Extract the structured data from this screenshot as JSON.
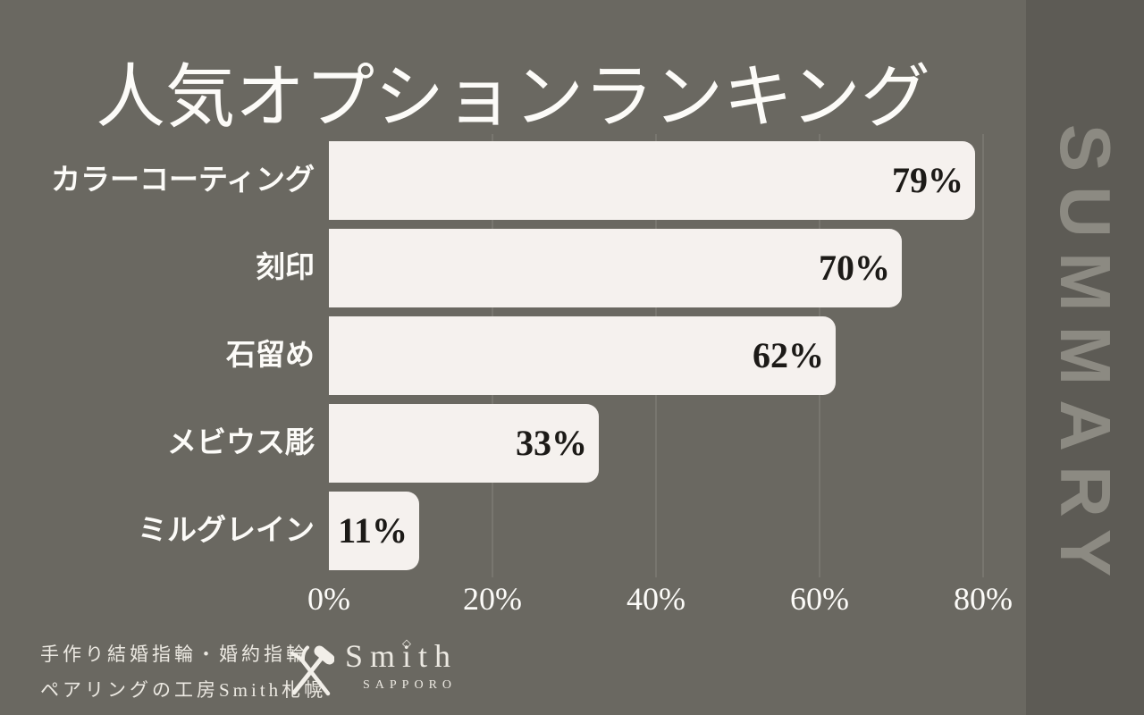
{
  "title": "人気オプションランキング",
  "summary_label": "SUMMARY",
  "chart_data": {
    "type": "bar",
    "orientation": "horizontal",
    "title": "人気オプションランキング",
    "categories": [
      "カラーコーティング",
      "刻印",
      "石留め",
      "メビウス彫",
      "ミルグレイン"
    ],
    "values": [
      79,
      70,
      62,
      33,
      11
    ],
    "value_labels": [
      "79%",
      "70%",
      "62%",
      "33%",
      "11%"
    ],
    "x_tick_labels": [
      "0%",
      "20%",
      "40%",
      "60%",
      "80%"
    ],
    "x_tick_values": [
      0,
      20,
      40,
      60,
      80
    ],
    "xlim": [
      0,
      84
    ],
    "grid": "vertical-gridlines",
    "legend": "none"
  },
  "footer": {
    "tagline_line1": "手作り結婚指輪・婚約指輪",
    "tagline_line2": "ペアリングの工房Smith札幌",
    "brand": "Smith",
    "brand_sub": "SAPPORO",
    "diamond": "◇"
  },
  "colors": {
    "background": "#6a6861",
    "panel": "#5d5b55",
    "summary_text": "#8c8a82",
    "bar": "#f5f1ee",
    "value_color": "#1c1a17",
    "text_light": "#fcfbf8",
    "footer_text": "#ece9e2",
    "grid": "#78766f"
  }
}
